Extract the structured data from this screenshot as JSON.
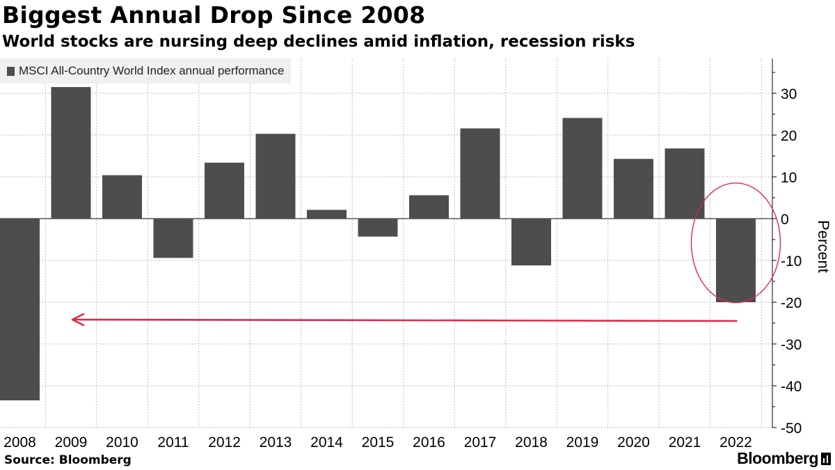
{
  "header": {
    "title": "Biggest Annual Drop Since 2008",
    "subtitle": "World stocks are nursing deep declines amid inflation, recession risks"
  },
  "footer": {
    "source": "Source: Bloomberg",
    "brand": "Bloomberg",
    "brand_icon": "bloomberg-terminal-icon"
  },
  "colors": {
    "bar": "#4d4d4d",
    "annotation": "#e0284a",
    "grid": "#bdbdbd",
    "legend_bg": "#f0f0f0"
  },
  "chart_data": {
    "type": "bar",
    "title": "Biggest Annual Drop Since 2008",
    "subtitle": "World stocks are nursing deep declines amid inflation, recession risks",
    "categories": [
      "2008",
      "2009",
      "2010",
      "2011",
      "2012",
      "2013",
      "2014",
      "2015",
      "2016",
      "2017",
      "2018",
      "2019",
      "2020",
      "2021",
      "2022"
    ],
    "series": [
      {
        "name": "MSCI All-Country World Index annual performance",
        "values": [
          -43.5,
          31.5,
          10.4,
          -9.4,
          13.4,
          20.3,
          2.1,
          -4.3,
          5.6,
          21.6,
          -11.2,
          24.1,
          14.3,
          16.8,
          -20.0
        ]
      }
    ],
    "xlabel": "",
    "ylabel": "Percent",
    "ylim": [
      -50,
      38
    ],
    "yticks": [
      30,
      20,
      10,
      0,
      -10,
      -20,
      -30,
      -40,
      -50
    ],
    "ytick_labels": [
      "30",
      "20",
      "10",
      "0",
      "-10",
      "-20",
      "-30",
      "-40",
      "-50"
    ],
    "grid": true,
    "legend_position": "top-left",
    "annotations": [
      {
        "type": "ellipse",
        "target": "2022",
        "description": "highlight circle around 2022 bar"
      },
      {
        "type": "arrow",
        "from": "2022",
        "to": "2009",
        "y": -24.5,
        "description": "arrow back to 2008 level"
      }
    ]
  }
}
